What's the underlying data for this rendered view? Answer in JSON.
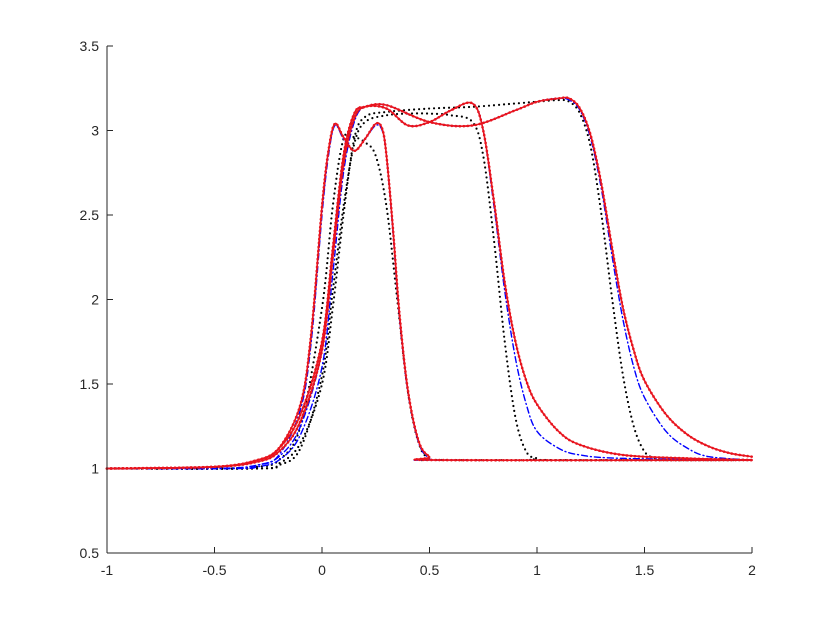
{
  "chart_data": {
    "type": "line",
    "title": "",
    "xlabel": "",
    "ylabel": "",
    "xlim": [
      -1,
      2
    ],
    "ylim": [
      0.5,
      3.5
    ],
    "grid": false,
    "legend": "none",
    "x_ticks": [
      "-1",
      "-0.5",
      "0",
      "0.5",
      "1",
      "1.5",
      "2"
    ],
    "y_ticks": [
      "0.5",
      "1",
      "1.5",
      "2",
      "2.5",
      "3",
      "3.5"
    ],
    "series_colors": {
      "black": "#000000",
      "blue": "#0000ff",
      "red": "#e8141e"
    },
    "series": [
      {
        "color": "#000000",
        "style": "dotted",
        "x": [
          -1,
          -0.5,
          -0.3,
          -0.2,
          -0.1,
          0,
          0.05,
          0.1,
          0.15,
          0.2,
          0.25,
          0.3,
          0.35,
          0.4,
          0.45,
          0.5,
          0.6,
          2
        ],
        "y": [
          1,
          1,
          1.01,
          1.05,
          1.25,
          1.95,
          2.55,
          2.95,
          2.96,
          2.93,
          2.85,
          2.55,
          2.0,
          1.45,
          1.15,
          1.06,
          1.05,
          1.05
        ]
      },
      {
        "color": "#000000",
        "style": "dotted",
        "x": [
          -1,
          -0.3,
          -0.2,
          -0.1,
          0,
          0.05,
          0.1,
          0.15,
          0.2,
          0.3,
          0.4,
          0.5,
          0.6,
          0.7,
          0.75,
          0.8,
          0.85,
          0.9,
          0.95,
          1.0,
          1.05,
          2
        ],
        "y": [
          1,
          1,
          1.02,
          1.12,
          1.55,
          2.05,
          2.55,
          2.92,
          3.05,
          3.09,
          3.1,
          3.1,
          3.09,
          3.05,
          2.85,
          2.35,
          1.75,
          1.3,
          1.1,
          1.06,
          1.05,
          1.05
        ]
      },
      {
        "color": "#000000",
        "style": "dotted",
        "x": [
          -1,
          -0.3,
          -0.2,
          -0.1,
          0,
          0.05,
          0.1,
          0.15,
          0.2,
          0.3,
          0.5,
          0.7,
          0.9,
          1.0,
          1.1,
          1.15,
          1.2,
          1.25,
          1.3,
          1.35,
          1.4,
          1.45,
          1.5,
          1.55,
          1.6,
          2
        ],
        "y": [
          1,
          1,
          1.03,
          1.15,
          1.5,
          1.95,
          2.5,
          2.95,
          3.08,
          3.11,
          3.13,
          3.14,
          3.16,
          3.17,
          3.18,
          3.17,
          3.1,
          2.9,
          2.5,
          2.0,
          1.55,
          1.25,
          1.1,
          1.06,
          1.05,
          1.05
        ]
      },
      {
        "color": "#0000ff",
        "style": "dashdot",
        "x": [
          -1,
          -0.5,
          -0.3,
          -0.2,
          -0.1,
          -0.05,
          0,
          0.03,
          0.06,
          0.1,
          0.15,
          0.2,
          0.25,
          0.28,
          0.3,
          0.33,
          0.36,
          0.4,
          0.45,
          0.5,
          0.55,
          2
        ],
        "y": [
          1,
          1,
          1.02,
          1.08,
          1.35,
          1.75,
          2.5,
          2.85,
          3.03,
          2.95,
          2.88,
          2.95,
          3.03,
          3.0,
          2.85,
          2.4,
          1.9,
          1.45,
          1.15,
          1.06,
          1.05,
          1.05
        ]
      },
      {
        "color": "#0000ff",
        "style": "dashdot",
        "x": [
          -1,
          -0.4,
          -0.3,
          -0.2,
          -0.1,
          0,
          0.05,
          0.1,
          0.15,
          0.2,
          0.3,
          0.4,
          0.5,
          0.6,
          0.7,
          0.75,
          0.8,
          0.85,
          0.9,
          0.95,
          1.0,
          1.1,
          1.2,
          1.4,
          2
        ],
        "y": [
          1,
          1,
          1.01,
          1.05,
          1.2,
          1.6,
          2.15,
          2.75,
          3.05,
          3.14,
          3.13,
          3.03,
          3.05,
          3.12,
          3.16,
          3.0,
          2.55,
          2.05,
          1.65,
          1.38,
          1.22,
          1.12,
          1.08,
          1.06,
          1.05
        ]
      },
      {
        "color": "#0000ff",
        "style": "dashdot",
        "x": [
          -1,
          -0.4,
          -0.3,
          -0.2,
          -0.1,
          0,
          0.05,
          0.1,
          0.15,
          0.2,
          0.3,
          0.5,
          0.7,
          0.9,
          1.0,
          1.1,
          1.15,
          1.2,
          1.25,
          1.3,
          1.35,
          1.4,
          1.45,
          1.5,
          1.6,
          1.7,
          1.8,
          2
        ],
        "y": [
          1,
          1,
          1.02,
          1.07,
          1.25,
          1.7,
          2.3,
          2.85,
          3.1,
          3.14,
          3.15,
          3.05,
          3.03,
          3.12,
          3.17,
          3.19,
          3.18,
          3.12,
          2.95,
          2.65,
          2.25,
          1.88,
          1.6,
          1.42,
          1.22,
          1.12,
          1.07,
          1.05
        ]
      },
      {
        "color": "#e8141e",
        "style": "solid-dotted",
        "x": [
          -1,
          -0.5,
          -0.3,
          -0.2,
          -0.1,
          -0.05,
          0,
          0.03,
          0.06,
          0.1,
          0.15,
          0.2,
          0.25,
          0.28,
          0.3,
          0.33,
          0.36,
          0.4,
          0.45,
          0.5,
          0.55,
          2
        ],
        "y": [
          1,
          1.01,
          1.05,
          1.12,
          1.38,
          1.8,
          2.55,
          2.88,
          3.04,
          2.96,
          2.88,
          2.95,
          3.04,
          3.01,
          2.85,
          2.42,
          1.92,
          1.46,
          1.16,
          1.07,
          1.05,
          1.05
        ]
      },
      {
        "color": "#e8141e",
        "style": "solid-dotted",
        "x": [
          -1,
          -0.5,
          -0.3,
          -0.2,
          -0.1,
          0,
          0.05,
          0.1,
          0.15,
          0.2,
          0.3,
          0.4,
          0.5,
          0.6,
          0.7,
          0.75,
          0.8,
          0.85,
          0.9,
          0.95,
          1.0,
          1.1,
          1.2,
          1.4,
          1.7,
          2
        ],
        "y": [
          1,
          1.01,
          1.04,
          1.1,
          1.28,
          1.7,
          2.25,
          2.8,
          3.07,
          3.14,
          3.13,
          3.03,
          3.05,
          3.12,
          3.16,
          3.0,
          2.58,
          2.1,
          1.75,
          1.52,
          1.38,
          1.22,
          1.14,
          1.08,
          1.06,
          1.05
        ]
      },
      {
        "color": "#e8141e",
        "style": "solid-dotted",
        "x": [
          -1,
          -0.5,
          -0.3,
          -0.2,
          -0.1,
          0,
          0.05,
          0.1,
          0.15,
          0.2,
          0.3,
          0.5,
          0.7,
          0.9,
          1.0,
          1.1,
          1.15,
          1.2,
          1.25,
          1.3,
          1.35,
          1.4,
          1.45,
          1.5,
          1.6,
          1.7,
          1.8,
          1.9,
          2
        ],
        "y": [
          1,
          1.01,
          1.05,
          1.12,
          1.32,
          1.75,
          2.3,
          2.85,
          3.1,
          3.14,
          3.15,
          3.05,
          3.03,
          3.12,
          3.17,
          3.19,
          3.19,
          3.13,
          2.97,
          2.68,
          2.3,
          1.95,
          1.7,
          1.52,
          1.32,
          1.2,
          1.13,
          1.09,
          1.07
        ]
      }
    ]
  }
}
